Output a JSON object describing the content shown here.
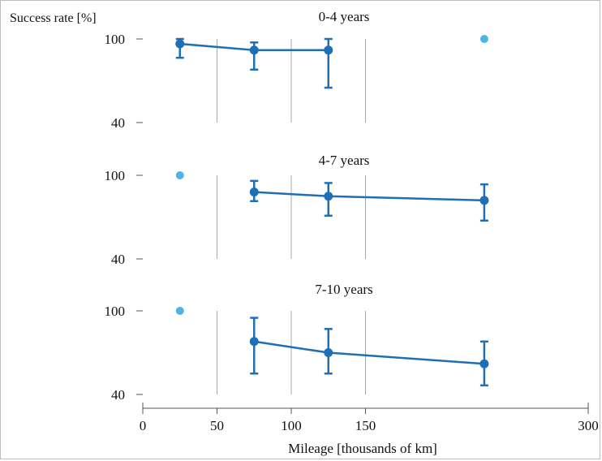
{
  "chart_data": {
    "type": "line",
    "y_label": "Success rate [%]",
    "x_label": "Mileage [thousands of km]",
    "x_ticks": [
      0,
      50,
      100,
      150,
      300
    ],
    "x_range": [
      0,
      300
    ],
    "y_ticks": [
      40,
      100
    ],
    "y_range": [
      40,
      100
    ],
    "colors": {
      "line": "#1f6fb5",
      "highlight": "#4fb3e8",
      "grid": "#a8a8a8",
      "axis": "#555555"
    },
    "panels": [
      {
        "title": "0-4 years",
        "series": [
          {
            "x": 25,
            "y": 96.5,
            "err_low": 86.5,
            "err_high": 100
          },
          {
            "x": 75,
            "y": 92,
            "err_low": 78,
            "err_high": 97.5
          },
          {
            "x": 125,
            "y": 92,
            "err_low": 65,
            "err_high": 100
          }
        ],
        "highlight": [
          {
            "x": 230,
            "y": 100
          }
        ]
      },
      {
        "title": "4-7 years",
        "series": [
          {
            "x": 75,
            "y": 88,
            "err_low": 81.5,
            "err_high": 96
          },
          {
            "x": 125,
            "y": 85,
            "err_low": 71,
            "err_high": 94.5
          },
          {
            "x": 230,
            "y": 82,
            "err_low": 67.5,
            "err_high": 93.5
          }
        ],
        "highlight": [
          {
            "x": 25,
            "y": 100
          }
        ]
      },
      {
        "title": "7-10 years",
        "series": [
          {
            "x": 75,
            "y": 78,
            "err_low": 55,
            "err_high": 95
          },
          {
            "x": 125,
            "y": 70,
            "err_low": 55,
            "err_high": 87
          },
          {
            "x": 230,
            "y": 62,
            "err_low": 46.5,
            "err_high": 78
          }
        ],
        "highlight": [
          {
            "x": 25,
            "y": 100
          }
        ]
      }
    ]
  }
}
